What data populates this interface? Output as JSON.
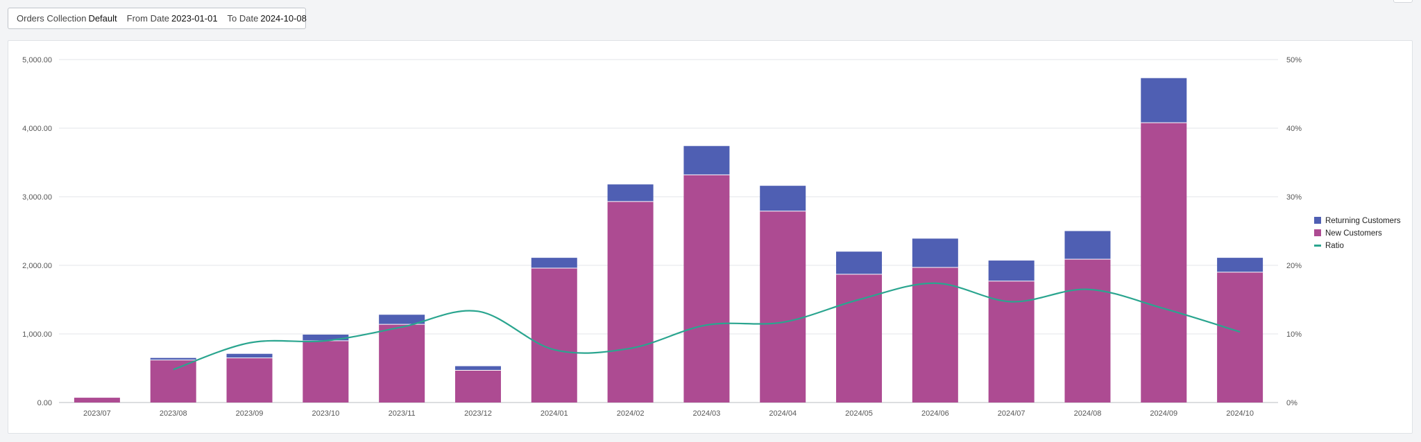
{
  "filters": {
    "collection_label": "Orders Collection",
    "collection_value": "Default",
    "from_label": "From Date",
    "from_value": "2023-01-01",
    "to_label": "To Date",
    "to_value": "2024-10-08"
  },
  "colors": {
    "returning": "#4f5fb3",
    "new": "#ad4b92",
    "ratio": "#2aa58f",
    "grid": "#e3e5e8"
  },
  "chart_data": {
    "type": "bar",
    "stacked": true,
    "categories": [
      "2023/07",
      "2023/08",
      "2023/09",
      "2023/10",
      "2023/11",
      "2023/12",
      "2024/01",
      "2024/02",
      "2024/03",
      "2024/04",
      "2024/05",
      "2024/06",
      "2024/07",
      "2024/08",
      "2024/09",
      "2024/10"
    ],
    "series": [
      {
        "name": "New Customers",
        "type": "bar",
        "axis": "left",
        "values": [
          70,
          620,
          650,
          900,
          1140,
          470,
          1960,
          2930,
          3320,
          2790,
          1870,
          1970,
          1770,
          2090,
          4080,
          1900
        ]
      },
      {
        "name": "Returning Customers",
        "type": "bar",
        "axis": "left",
        "values": [
          0,
          30,
          60,
          90,
          140,
          60,
          150,
          250,
          420,
          370,
          330,
          420,
          300,
          410,
          650,
          210
        ]
      },
      {
        "name": "Ratio",
        "type": "line",
        "axis": "right",
        "values": [
          null,
          4.8,
          8.7,
          9.0,
          11.0,
          13.3,
          7.7,
          7.9,
          11.3,
          11.7,
          15.0,
          17.4,
          14.7,
          16.5,
          13.7,
          10.3
        ]
      }
    ],
    "left_axis": {
      "min": 0,
      "max": 5000,
      "ticks": [
        "0.00",
        "1,000.00",
        "2,000.00",
        "3,000.00",
        "4,000.00",
        "5,000.00"
      ]
    },
    "right_axis": {
      "min": 0,
      "max": 50,
      "ticks": [
        "0%",
        "10%",
        "20%",
        "30%",
        "40%",
        "50%"
      ]
    },
    "legend": [
      "Returning Customers",
      "New Customers",
      "Ratio"
    ],
    "legend_position": "right",
    "grid": true
  }
}
